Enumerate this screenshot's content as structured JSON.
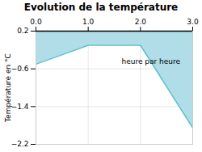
{
  "chart_data": {
    "type": "line",
    "title": "Evolution de la température",
    "ylabel": "Température en °C",
    "x": [
      0,
      1,
      2,
      3
    ],
    "values": [
      -0.5,
      -0.1,
      -0.1,
      -1.85
    ],
    "color": "#5bbfcc",
    "xlim": [
      0,
      3
    ],
    "ylim": [
      -2.2,
      0.2
    ],
    "xticks": [
      0,
      1,
      2,
      3
    ],
    "yticks": [
      0.2,
      -0.6,
      -1.4,
      -2.2
    ],
    "grid": true,
    "annotations": [
      {
        "text": "heure par heure",
        "x": 2.2,
        "y": -0.38
      }
    ]
  }
}
